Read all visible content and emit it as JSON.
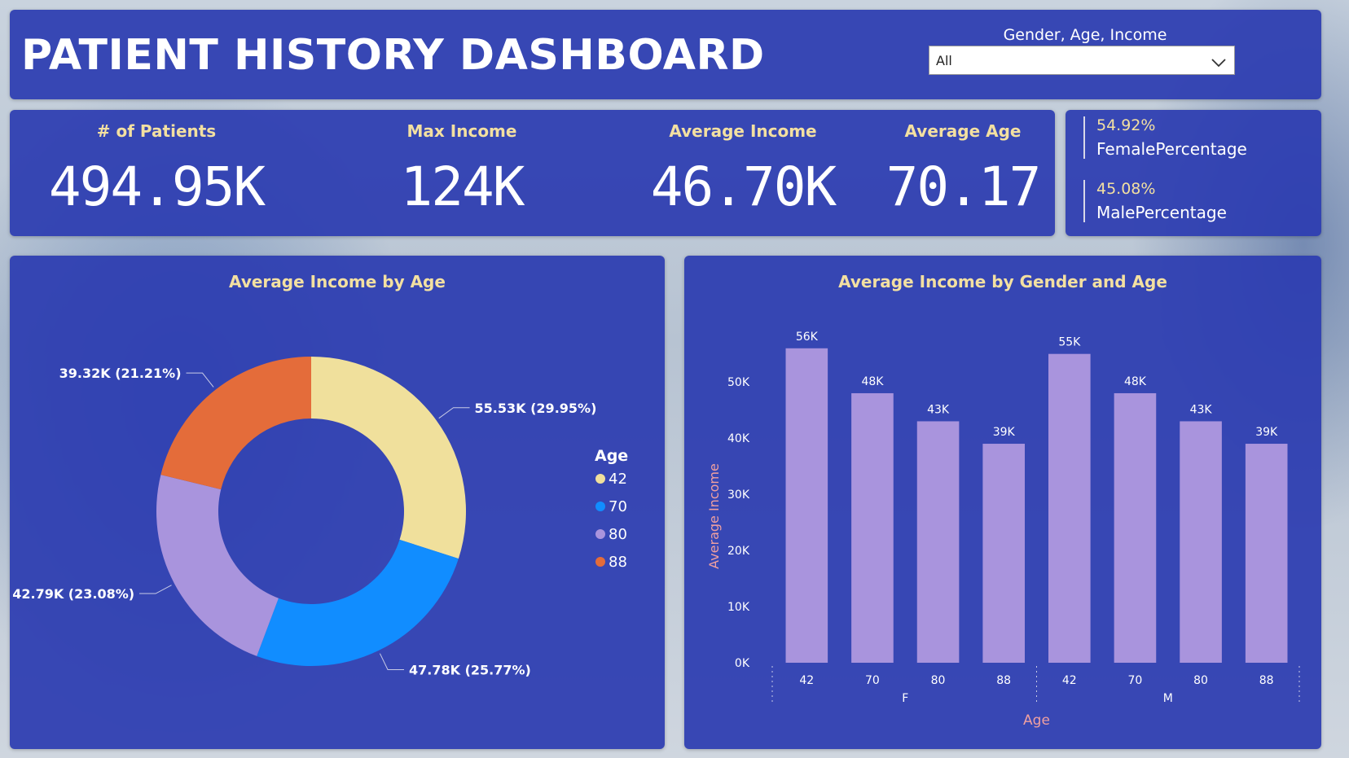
{
  "header": {
    "title": "PATIENT HISTORY DASHBOARD",
    "slicer_label": "Gender, Age, Income",
    "slicer_value": "All"
  },
  "kpis": [
    {
      "label": "# of Patients",
      "value": "494.95K"
    },
    {
      "label": "Max Income",
      "value": "124K"
    },
    {
      "label": "Average Income",
      "value": "46.70K"
    },
    {
      "label": "Average Age",
      "value": "70.17"
    }
  ],
  "gender": [
    {
      "pct": "54.92%",
      "name": "FemalePercentage"
    },
    {
      "pct": "45.08%",
      "name": "MalePercentage"
    }
  ],
  "colors": {
    "panel": "#2c3cb0",
    "accent_text": "#f3e0a1",
    "axis_title": "#f0a0a0",
    "bar": "#a994dd"
  },
  "icons": {
    "dropdown": "chevron-down-icon"
  },
  "chart_data": [
    {
      "type": "pie",
      "title": "Average Income by Age",
      "legend_title": "Age",
      "legend_position": "right",
      "categories": [
        "42",
        "70",
        "80",
        "88"
      ],
      "values": [
        55.53,
        47.78,
        42.79,
        39.32
      ],
      "labels": [
        "55.53K (29.95%)",
        "47.78K (25.77%)",
        "42.79K (23.08%)",
        "39.32K (21.21%)"
      ],
      "colors": [
        "#f0e09c",
        "#118dff",
        "#a994dd",
        "#e46c3a"
      ]
    },
    {
      "type": "bar",
      "title": "Average Income by Gender and Age",
      "xlabel": "Age",
      "ylabel": "Average Income",
      "groups": [
        "F",
        "M"
      ],
      "categories": [
        "42",
        "70",
        "80",
        "88",
        "42",
        "70",
        "80",
        "88"
      ],
      "values": [
        56,
        48,
        43,
        39,
        55,
        48,
        43,
        39
      ],
      "data_labels": [
        "56K",
        "48K",
        "43K",
        "39K",
        "55K",
        "48K",
        "43K",
        "39K"
      ],
      "yticks": [
        "0K",
        "10K",
        "20K",
        "30K",
        "40K",
        "50K"
      ],
      "ylim": [
        0,
        58
      ],
      "grid": false
    }
  ]
}
